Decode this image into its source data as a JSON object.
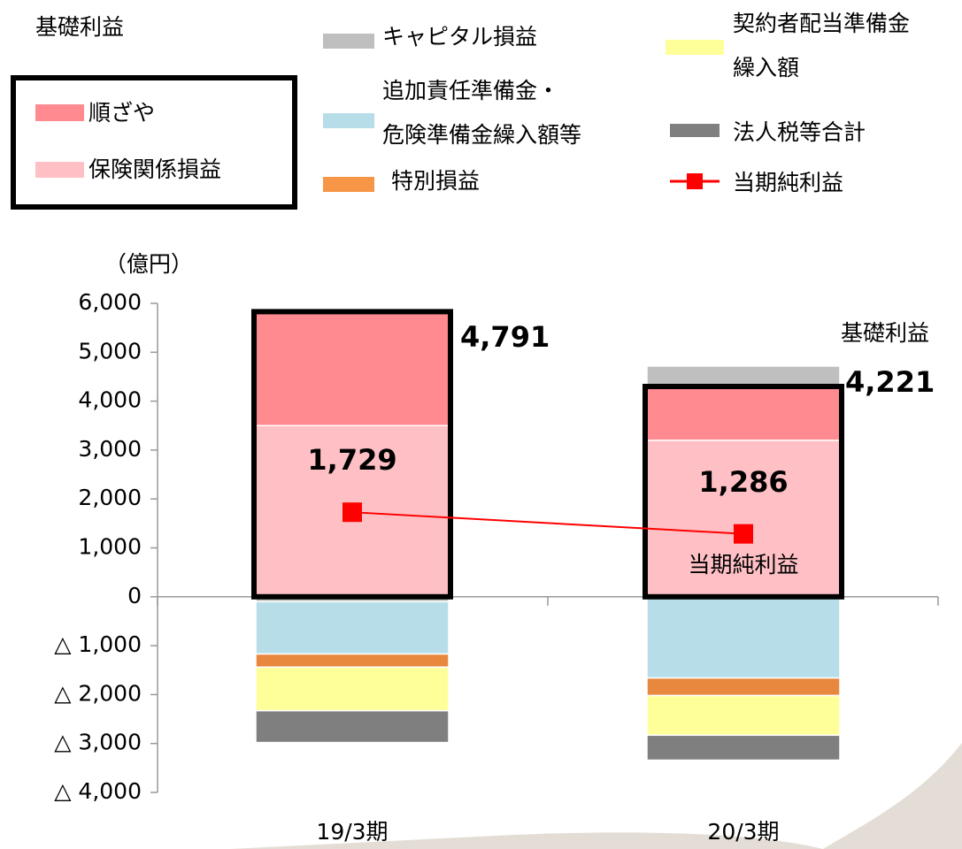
{
  "chart_data": {
    "type": "stacked_bar_line",
    "title": "基礎利益",
    "y_unit": "（億円）",
    "categories": [
      "19/3期",
      "20/3期"
    ],
    "series": [
      {
        "name": "保険関係損益",
        "color": "#ffc0c5",
        "values": [
          3500,
          3200
        ]
      },
      {
        "name": "順ざや",
        "color": "#ff8a8f",
        "values": [
          2330,
          1100
        ]
      },
      {
        "name": "キャピタル損益",
        "color": "#bfbfbf",
        "values": [
          -100,
          417
        ]
      },
      {
        "name": "追加責任準備金・\n危険準備金繰入額等",
        "color": "#b7dde8",
        "values": [
          -1070,
          -1660
        ]
      },
      {
        "name": "特別損益",
        "color": "#e8883e",
        "values": [
          -270,
          -360
        ]
      },
      {
        "name": "契約者配当準備金\n繰入額",
        "color": "#ffff99",
        "values": [
          -890,
          -810
        ]
      },
      {
        "name": "法人税等合計",
        "color": "#7f7f7f",
        "values": [
          -650,
          -510
        ]
      }
    ],
    "line": {
      "name": "当期純利益",
      "color": "#ff0000",
      "values": [
        1729,
        1286
      ],
      "value_labels": [
        "1,729",
        "1,286"
      ]
    },
    "annotations": [
      {
        "text": "4,791"
      },
      {
        "text": "4,221"
      },
      {
        "text": "基礎利益"
      },
      {
        "text": "当期純利益"
      }
    ],
    "ylim": [
      -4000,
      6000
    ],
    "yticks": [
      {
        "value": -4000,
        "label": "△ 4,000"
      },
      {
        "value": -3000,
        "label": "△ 3,000"
      },
      {
        "value": -2000,
        "label": "△ 2,000"
      },
      {
        "value": -1000,
        "label": "△ 1,000"
      },
      0,
      {
        "value": 1000,
        "label": "1,000"
      },
      {
        "value": 2000,
        "label": "2,000"
      },
      {
        "value": 3000,
        "label": "3,000"
      },
      {
        "value": 4000,
        "label": "4,000"
      },
      {
        "value": 5000,
        "label": "5,000"
      },
      {
        "value": 6000,
        "label": "6,000"
      }
    ]
  }
}
